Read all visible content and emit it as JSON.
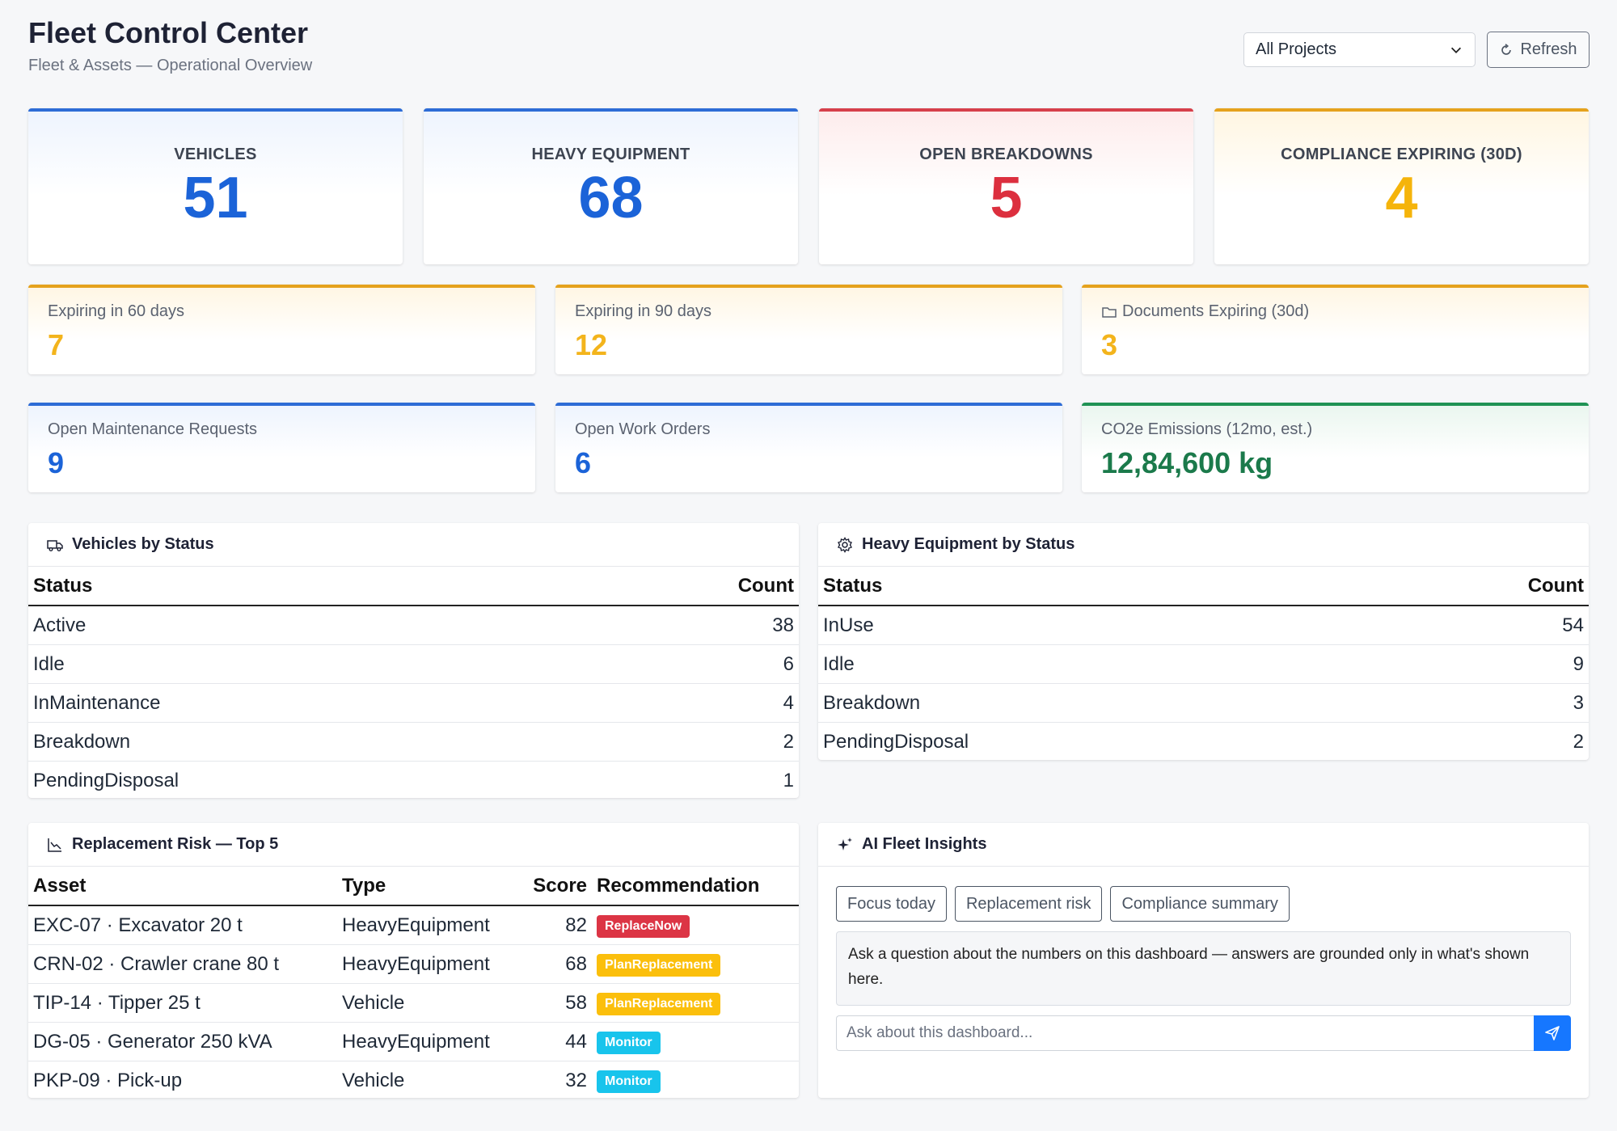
{
  "header": {
    "title": "Fleet Control Center",
    "subtitle": "Fleet & Assets — Operational Overview",
    "project_select": "All Projects",
    "refresh_label": "Refresh"
  },
  "kpis": [
    {
      "label": "VEHICLES",
      "value": "51",
      "color": "#1b63d8"
    },
    {
      "label": "HEAVY EQUIPMENT",
      "value": "68",
      "color": "#1b63d8"
    },
    {
      "label": "OPEN BREAKDOWNS",
      "value": "5",
      "color": "#dc2f3e"
    },
    {
      "label": "COMPLIANCE EXPIRING (30D)",
      "value": "4",
      "color": "#f5b40b"
    }
  ],
  "stats_row1": [
    {
      "label": "Expiring in 60 days",
      "value": "7"
    },
    {
      "label": "Expiring in 90 days",
      "value": "12"
    },
    {
      "label": "Documents Expiring (30d)",
      "value": "3",
      "icon": "folder-icon"
    }
  ],
  "stats_row2": [
    {
      "label": "Open Maintenance Requests",
      "value": "9"
    },
    {
      "label": "Open Work Orders",
      "value": "6"
    },
    {
      "label": "CO2e Emissions (12mo, est.)",
      "value": "12,84,600 kg"
    }
  ],
  "vehicles_by_status": {
    "title": "Vehicles by Status",
    "icon": "truck-icon",
    "columns": [
      "Status",
      "Count"
    ],
    "rows": [
      [
        "Active",
        "38"
      ],
      [
        "Idle",
        "6"
      ],
      [
        "InMaintenance",
        "4"
      ],
      [
        "Breakdown",
        "2"
      ],
      [
        "PendingDisposal",
        "1"
      ]
    ]
  },
  "equipment_by_status": {
    "title": "Heavy Equipment by Status",
    "icon": "gear-icon",
    "columns": [
      "Status",
      "Count"
    ],
    "rows": [
      [
        "InUse",
        "54"
      ],
      [
        "Idle",
        "9"
      ],
      [
        "Breakdown",
        "3"
      ],
      [
        "PendingDisposal",
        "2"
      ]
    ]
  },
  "replacement_risk": {
    "title": "Replacement Risk — Top 5",
    "icon": "chart-down-icon",
    "columns": [
      "Asset",
      "Type",
      "Score",
      "Recommendation"
    ],
    "rows": [
      [
        "EXC-07 · Excavator 20 t",
        "HeavyEquipment",
        "82",
        "ReplaceNow"
      ],
      [
        "CRN-02 · Crawler crane 80 t",
        "HeavyEquipment",
        "68",
        "PlanReplacement"
      ],
      [
        "TIP-14 · Tipper 25 t",
        "Vehicle",
        "58",
        "PlanReplacement"
      ],
      [
        "DG-05 · Generator 250 kVA",
        "HeavyEquipment",
        "44",
        "Monitor"
      ],
      [
        "PKP-09 · Pick-up",
        "Vehicle",
        "32",
        "Monitor"
      ]
    ]
  },
  "ai_insights": {
    "title": "AI Fleet Insights",
    "icon": "sparkle-icon",
    "chips": [
      "Focus today",
      "Replacement risk",
      "Compliance summary"
    ],
    "message": "Ask a question about the numbers on this dashboard — answers are grounded only in what's shown here.",
    "input_placeholder": "Ask about this dashboard...",
    "send_icon": "send-icon"
  }
}
